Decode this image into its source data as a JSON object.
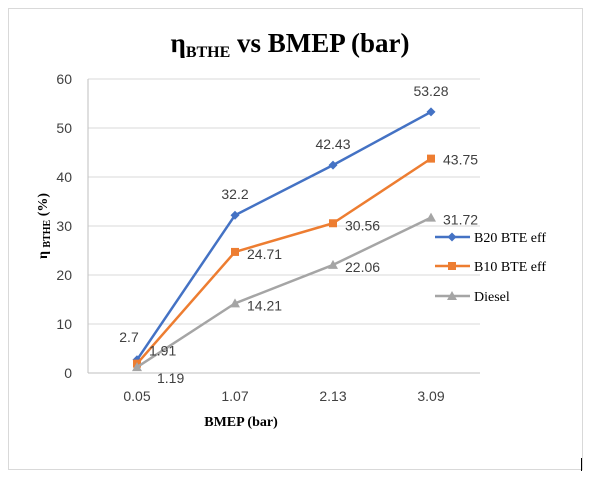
{
  "chart_data": {
    "type": "line",
    "title": {
      "main_prefix": "η",
      "subscript": "BTHE",
      "main_suffix": " vs BMEP (bar)"
    },
    "xlabel": "BMEP (bar)",
    "ylabel": {
      "prefix": "η ",
      "subscript": "BTHE",
      "suffix": " (%)"
    },
    "categories": [
      "0.05",
      "1.07",
      "2.13",
      "3.09"
    ],
    "ylim": [
      0,
      60
    ],
    "yticks": [
      "0",
      "10",
      "20",
      "30",
      "40",
      "50",
      "60"
    ],
    "grid": true,
    "legend_position": "right",
    "series": [
      {
        "name": "B20 BTE eff",
        "color": "#4472c4",
        "marker": "diamond",
        "values": [
          2.7,
          32.2,
          42.43,
          53.28
        ],
        "labels": [
          "2.7",
          "32.2",
          "42.43",
          "53.28"
        ]
      },
      {
        "name": "B10 BTE eff",
        "color": "#ed7d31",
        "marker": "square",
        "values": [
          1.91,
          24.71,
          30.56,
          43.75
        ],
        "labels": [
          "1.91",
          "24.71",
          "30.56",
          "43.75"
        ]
      },
      {
        "name": "Diesel",
        "color": "#a5a5a5",
        "marker": "triangle",
        "values": [
          1.19,
          14.21,
          22.06,
          31.72
        ],
        "labels": [
          "1.19",
          "14.21",
          "22.06",
          "31.72"
        ]
      }
    ]
  }
}
